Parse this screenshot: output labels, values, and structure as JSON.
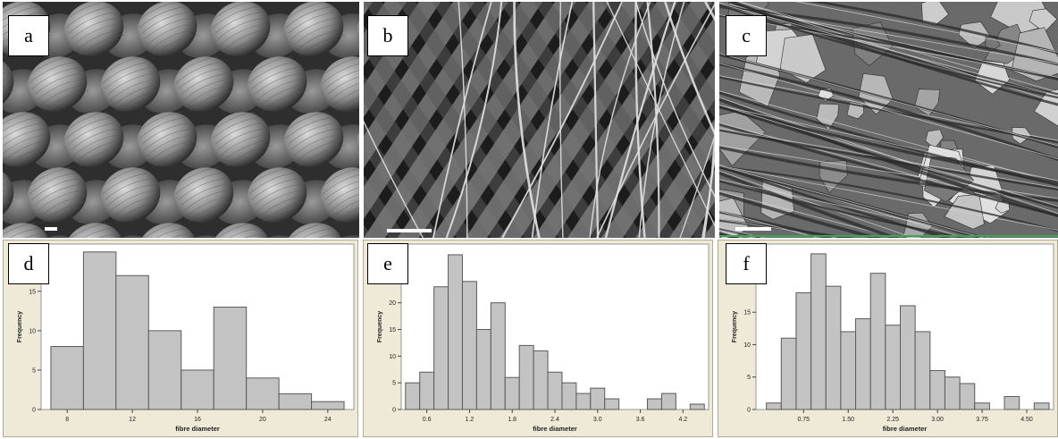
{
  "panels": {
    "a": {
      "label": "a"
    },
    "b": {
      "label": "b"
    },
    "c": {
      "label": "c"
    },
    "d": {
      "label": "d"
    },
    "e": {
      "label": "e"
    },
    "f": {
      "label": "f"
    }
  },
  "colors": {
    "bar_fill": "#c3c3c3",
    "bar_stroke": "#5a5a5a",
    "frame_bg": "#efe9d8",
    "plot_bg": "#ffffff",
    "scale_bar": "#ffffff",
    "sem_dark": "#1a1a1a",
    "sem_light": "#cfcfcf"
  },
  "chart_data": [
    {
      "id": "d",
      "type": "bar",
      "xlabel": "fibre diameter",
      "ylabel": "Frequency",
      "bin_edges": [
        7,
        9,
        11,
        13,
        15,
        17,
        19,
        21,
        23,
        25
      ],
      "values": [
        8,
        20,
        17,
        10,
        5,
        13,
        4,
        2,
        1
      ],
      "xlim": [
        6.4,
        25.6
      ],
      "ylim": [
        0,
        21
      ],
      "xticks": [
        8,
        12,
        16,
        20,
        24
      ],
      "xtick_labels": [
        "8",
        "12",
        "16",
        "20",
        "24"
      ],
      "yticks": [
        0,
        5,
        10,
        15,
        20
      ],
      "ytick_labels": [
        "0",
        "5",
        "10",
        "15",
        "20"
      ]
    },
    {
      "id": "e",
      "type": "bar",
      "xlabel": "fibre diameter",
      "ylabel": "Frequency",
      "bin_edges": [
        0.3,
        0.5,
        0.7,
        0.9,
        1.1,
        1.3,
        1.5,
        1.7,
        1.9,
        2.1,
        2.3,
        2.5,
        2.7,
        2.9,
        3.1,
        3.3,
        3.5,
        3.7,
        3.9,
        4.1,
        4.3,
        4.5
      ],
      "values": [
        5,
        7,
        23,
        29,
        24,
        15,
        20,
        6,
        12,
        11,
        7,
        5,
        3,
        4,
        2,
        0,
        0,
        2,
        3,
        0,
        1
      ],
      "xlim": [
        0.24,
        4.56
      ],
      "ylim": [
        0,
        31
      ],
      "xticks": [
        0.6,
        1.2,
        1.8,
        2.4,
        3.0,
        3.6,
        4.2
      ],
      "xtick_labels": [
        "0.6",
        "1.2",
        "1.8",
        "2.4",
        "3.0",
        "3.6",
        "4.2"
      ],
      "yticks": [
        0,
        5,
        10,
        15,
        20,
        25,
        30
      ],
      "ytick_labels": [
        "0",
        "5",
        "10",
        "15",
        "20",
        "25",
        "30"
      ]
    },
    {
      "id": "f",
      "type": "bar",
      "xlabel": "fibre diameter",
      "ylabel": "Frequency",
      "bin_edges": [
        0.125,
        0.375,
        0.625,
        0.875,
        1.125,
        1.375,
        1.625,
        1.875,
        2.125,
        2.375,
        2.625,
        2.875,
        3.125,
        3.375,
        3.625,
        3.875,
        4.125,
        4.375,
        4.625,
        4.875,
        5.125
      ],
      "values": [
        1,
        11,
        18,
        24,
        19,
        12,
        14,
        21,
        13,
        16,
        12,
        6,
        5,
        4,
        1,
        0,
        2,
        0,
        1,
        0
      ],
      "xlim": [
        -0.05,
        4.95
      ],
      "ylim": [
        0,
        25.5
      ],
      "xticks": [
        0.75,
        1.5,
        2.25,
        3.0,
        3.75,
        4.5
      ],
      "xtick_labels": [
        "0.75",
        "1.50",
        "2.25",
        "3.00",
        "3.75",
        "4.50"
      ],
      "yticks": [
        0,
        5,
        10,
        15,
        20,
        25
      ],
      "ytick_labels": [
        "0",
        "5",
        "10",
        "15",
        "20",
        "25"
      ]
    }
  ]
}
